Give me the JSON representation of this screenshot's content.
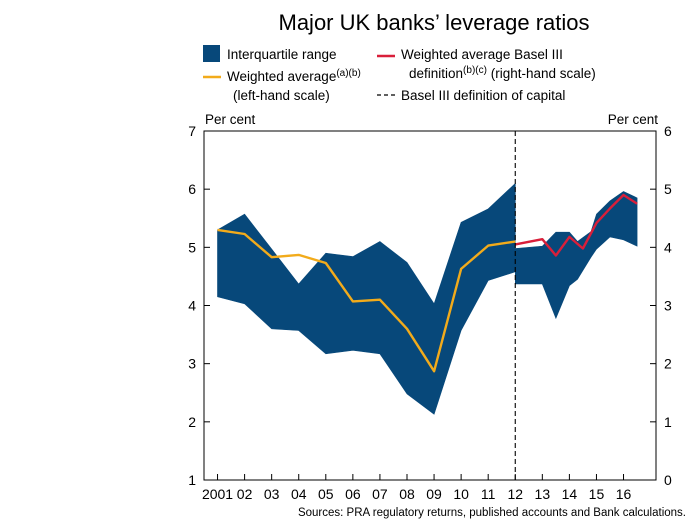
{
  "chart_data": {
    "type": "area",
    "title": "Major UK banks’ leverage ratios",
    "left_axis": {
      "unit_label": "Per cent",
      "ylim": [
        1,
        7
      ],
      "ticks": [
        "1",
        "2",
        "3",
        "4",
        "5",
        "6",
        "7"
      ]
    },
    "right_axis": {
      "unit_label": "Per cent",
      "ylim": [
        0,
        6
      ],
      "ticks": [
        "0",
        "1",
        "2",
        "3",
        "4",
        "5",
        "6"
      ]
    },
    "x_axis": {
      "xlim": [
        2000.5,
        2017.2
      ],
      "ticks": [
        {
          "x": 2001,
          "label": "2001"
        },
        {
          "x": 2002,
          "label": "02"
        },
        {
          "x": 2003,
          "label": "03"
        },
        {
          "x": 2004,
          "label": "04"
        },
        {
          "x": 2005,
          "label": "05"
        },
        {
          "x": 2006,
          "label": "06"
        },
        {
          "x": 2007,
          "label": "07"
        },
        {
          "x": 2008,
          "label": "08"
        },
        {
          "x": 2009,
          "label": "09"
        },
        {
          "x": 2010,
          "label": "10"
        },
        {
          "x": 2011,
          "label": "11"
        },
        {
          "x": 2012,
          "label": "12"
        },
        {
          "x": 2013,
          "label": "13"
        },
        {
          "x": 2014,
          "label": "14"
        },
        {
          "x": 2015,
          "label": "15"
        },
        {
          "x": 2016,
          "label": "16"
        }
      ]
    },
    "legend": {
      "interquartile": "Interquartile range",
      "weighted_line1": "Weighted average",
      "weighted_sup": "(a)(b)",
      "weighted_line2": "(left-hand scale)",
      "basel_line1": "Weighted average Basel III",
      "basel_line2_pre": "definition",
      "basel_sup": "(b)(c)",
      "basel_line2_post": "(right-hand scale)",
      "dashed": "Basel III definition of capital"
    },
    "divider_x": 2012,
    "series": [
      {
        "key": "iqr_left",
        "name": "Interquartile range",
        "axis": "left",
        "x": [
          2001,
          2002,
          2003,
          2004,
          2005,
          2006,
          2007,
          2008,
          2009,
          2010,
          2011,
          2012
        ],
        "upper": [
          5.3,
          5.57,
          4.97,
          4.37,
          4.9,
          4.84,
          5.1,
          4.74,
          4.03,
          5.43,
          5.66,
          6.1
        ],
        "lower": [
          4.15,
          4.03,
          3.6,
          3.57,
          3.17,
          3.23,
          3.17,
          2.48,
          2.13,
          3.57,
          4.43,
          4.58
        ],
        "color": "#07487a"
      },
      {
        "key": "iqr_right",
        "name": "Interquartile range",
        "axis": "right",
        "x": [
          2012,
          2013,
          2013.5,
          2014,
          2014.3,
          2014.8,
          2015,
          2015.5,
          2016,
          2016.5
        ],
        "upper": [
          3.98,
          4.02,
          4.26,
          4.26,
          4.1,
          4.27,
          4.57,
          4.8,
          4.96,
          4.85
        ],
        "lower": [
          3.37,
          3.37,
          2.78,
          3.34,
          3.45,
          3.83,
          3.97,
          4.18,
          4.13,
          4.02
        ],
        "color": "#07487a"
      },
      {
        "key": "weighted_avg",
        "name": "Weighted average",
        "axis": "left",
        "x": [
          2001,
          2002,
          2003,
          2004,
          2005,
          2006,
          2007,
          2008,
          2009,
          2010,
          2011,
          2012
        ],
        "values": [
          5.3,
          5.23,
          4.83,
          4.87,
          4.73,
          4.07,
          4.1,
          3.6,
          2.87,
          4.63,
          5.03,
          5.1
        ],
        "color": "#f2ab1b"
      },
      {
        "key": "basel_avg",
        "name": "Weighted average Basel III",
        "axis": "right",
        "x": [
          2012,
          2013,
          2013.5,
          2014,
          2014.5,
          2015,
          2015.5,
          2016,
          2016.5
        ],
        "values": [
          4.05,
          4.14,
          3.86,
          4.18,
          3.98,
          4.42,
          4.67,
          4.9,
          4.75
        ],
        "color": "#d91f3a"
      }
    ],
    "grid": false,
    "legend_position": "top",
    "source": "Sources: PRA regulatory returns, published accounts and Bank calculations."
  }
}
